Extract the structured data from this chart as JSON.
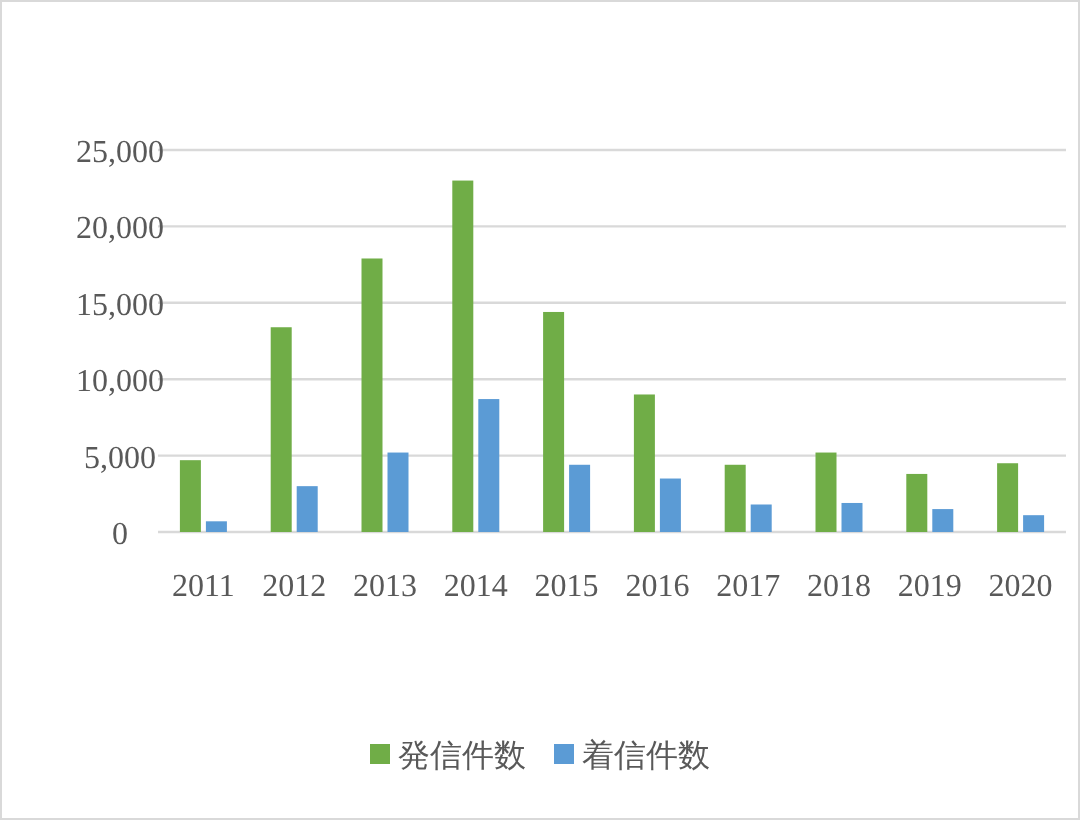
{
  "chart_data": {
    "type": "bar",
    "categories": [
      "2011",
      "2012",
      "2013",
      "2014",
      "2015",
      "2016",
      "2017",
      "2018",
      "2019",
      "2020"
    ],
    "series": [
      {
        "name": "発信件数",
        "color": "#70ad47",
        "values": [
          4700,
          13400,
          17900,
          23000,
          14400,
          9000,
          4400,
          5200,
          3800,
          4500
        ]
      },
      {
        "name": "着信件数",
        "color": "#5b9bd5",
        "values": [
          700,
          3000,
          5200,
          8700,
          4400,
          3500,
          1800,
          1900,
          1500,
          1100
        ]
      }
    ],
    "ylim": [
      0,
      25000
    ],
    "yticks": [
      {
        "value": 0,
        "label": "0"
      },
      {
        "value": 5000,
        "label": "5,000"
      },
      {
        "value": 10000,
        "label": "10,000"
      },
      {
        "value": 15000,
        "label": "15,000"
      },
      {
        "value": 20000,
        "label": "20,000"
      },
      {
        "value": 25000,
        "label": "25,000"
      }
    ],
    "grid": "y",
    "legend": "bottom"
  }
}
